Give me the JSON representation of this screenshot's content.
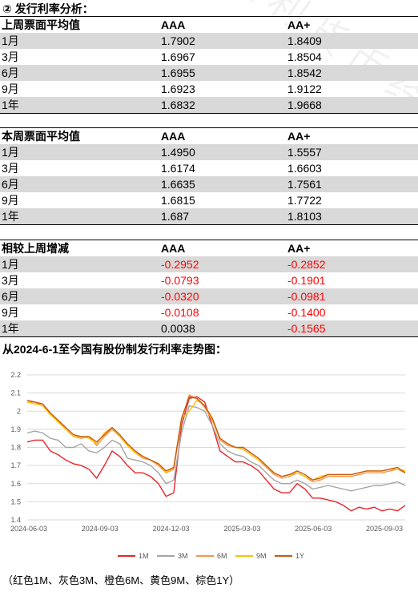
{
  "page_title": "② 发行利率分析：",
  "tables": [
    {
      "header": [
        "上周票面平均值",
        "AAA",
        "AA+"
      ],
      "rows": [
        [
          "1月",
          "1.7902",
          "1.8409"
        ],
        [
          "3月",
          "1.6967",
          "1.8504"
        ],
        [
          "6月",
          "1.6955",
          "1.8542"
        ],
        [
          "9月",
          "1.6923",
          "1.9122"
        ],
        [
          "1年",
          "1.6832",
          "1.9668"
        ]
      ]
    },
    {
      "header": [
        "本周票面平均值",
        "AAA",
        "AA+"
      ],
      "rows": [
        [
          "1月",
          "1.4950",
          "1.5557"
        ],
        [
          "3月",
          "1.6174",
          "1.6603"
        ],
        [
          "6月",
          "1.6635",
          "1.7561"
        ],
        [
          "9月",
          "1.6815",
          "1.7722"
        ],
        [
          "1年",
          "1.687",
          "1.8103"
        ]
      ]
    },
    {
      "header": [
        "相较上周增减",
        "AAA",
        "AA+"
      ],
      "rows": [
        [
          "1月",
          "-0.2952",
          "-0.2852"
        ],
        [
          "3月",
          "-0.0793",
          "-0.1901"
        ],
        [
          "6月",
          "-0.0320",
          "-0.0981"
        ],
        [
          "9月",
          "-0.0108",
          "-0.1400"
        ],
        [
          "1年",
          "0.0038",
          "-0.1565"
        ]
      ]
    }
  ],
  "chart_title": "从2024-6-1至今国有股份制发行利率走势图：",
  "chart_caption": "（红色1M、灰色3M、橙色6M、黄色9M、棕色1Y）",
  "watermark": "上海国利货币经纪有限公司",
  "chart_data": {
    "type": "line",
    "x_ticks": [
      "2024-06-03",
      "2024-09-03",
      "2024-12-03",
      "2025-03-03",
      "2025-06-03",
      "2025-09-03"
    ],
    "ylim": [
      1.4,
      2.2
    ],
    "y_ticks": [
      "1.4",
      "1.5",
      "1.6",
      "1.7",
      "1.8",
      "1.9",
      "2",
      "2.1",
      "2.2"
    ],
    "grid": true,
    "legend": "bottom",
    "series": [
      {
        "name": "1M",
        "color": "#e8262a",
        "values": [
          1.83,
          1.84,
          1.84,
          1.78,
          1.76,
          1.73,
          1.71,
          1.7,
          1.68,
          1.63,
          1.7,
          1.78,
          1.75,
          1.7,
          1.66,
          1.66,
          1.64,
          1.6,
          1.53,
          1.55,
          1.92,
          2.07,
          2.08,
          2.05,
          1.92,
          1.78,
          1.75,
          1.72,
          1.72,
          1.7,
          1.67,
          1.62,
          1.57,
          1.55,
          1.55,
          1.6,
          1.57,
          1.52,
          1.52,
          1.51,
          1.5,
          1.48,
          1.45,
          1.47,
          1.46,
          1.47,
          1.45,
          1.46,
          1.45,
          1.48
        ]
      },
      {
        "name": "3M",
        "color": "#a5a5a5",
        "values": [
          1.88,
          1.89,
          1.88,
          1.85,
          1.84,
          1.8,
          1.8,
          1.82,
          1.78,
          1.77,
          1.8,
          1.84,
          1.82,
          1.74,
          1.73,
          1.72,
          1.7,
          1.66,
          1.6,
          1.62,
          1.88,
          2.03,
          2.02,
          2.0,
          1.92,
          1.82,
          1.78,
          1.76,
          1.75,
          1.72,
          1.7,
          1.66,
          1.62,
          1.6,
          1.6,
          1.62,
          1.6,
          1.57,
          1.58,
          1.59,
          1.58,
          1.57,
          1.56,
          1.57,
          1.58,
          1.59,
          1.59,
          1.6,
          1.61,
          1.59
        ]
      },
      {
        "name": "6M",
        "color": "#f79646",
        "values": [
          2.05,
          2.05,
          2.03,
          1.99,
          1.95,
          1.9,
          1.86,
          1.85,
          1.86,
          1.81,
          1.86,
          1.9,
          1.86,
          1.81,
          1.77,
          1.74,
          1.73,
          1.7,
          1.66,
          1.68,
          1.95,
          2.09,
          2.07,
          2.02,
          1.95,
          1.84,
          1.81,
          1.8,
          1.79,
          1.76,
          1.73,
          1.69,
          1.65,
          1.63,
          1.64,
          1.66,
          1.64,
          1.61,
          1.62,
          1.64,
          1.64,
          1.64,
          1.64,
          1.65,
          1.66,
          1.66,
          1.66,
          1.67,
          1.68,
          1.66
        ]
      },
      {
        "name": "9M",
        "color": "#ffc000",
        "values": [
          2.05,
          2.04,
          2.03,
          1.98,
          1.94,
          1.9,
          1.86,
          1.86,
          1.85,
          1.82,
          1.88,
          1.91,
          1.86,
          1.81,
          1.77,
          1.75,
          1.73,
          1.71,
          1.66,
          1.69,
          1.96,
          2.0,
          2.06,
          2.03,
          1.95,
          1.85,
          1.82,
          1.8,
          1.79,
          1.76,
          1.73,
          1.7,
          1.66,
          1.64,
          1.65,
          1.66,
          1.64,
          1.62,
          1.64,
          1.65,
          1.65,
          1.65,
          1.65,
          1.66,
          1.67,
          1.67,
          1.67,
          1.68,
          1.68,
          1.67
        ]
      },
      {
        "name": "1Y",
        "color": "#c55a11",
        "values": [
          2.06,
          2.05,
          2.04,
          1.99,
          1.95,
          1.91,
          1.87,
          1.86,
          1.86,
          1.83,
          1.87,
          1.91,
          1.87,
          1.82,
          1.78,
          1.75,
          1.73,
          1.71,
          1.67,
          1.69,
          1.96,
          2.08,
          2.07,
          2.03,
          1.96,
          1.85,
          1.82,
          1.8,
          1.8,
          1.77,
          1.74,
          1.7,
          1.66,
          1.64,
          1.65,
          1.67,
          1.65,
          1.62,
          1.63,
          1.65,
          1.65,
          1.65,
          1.65,
          1.66,
          1.67,
          1.67,
          1.67,
          1.68,
          1.69,
          1.66
        ]
      }
    ]
  }
}
